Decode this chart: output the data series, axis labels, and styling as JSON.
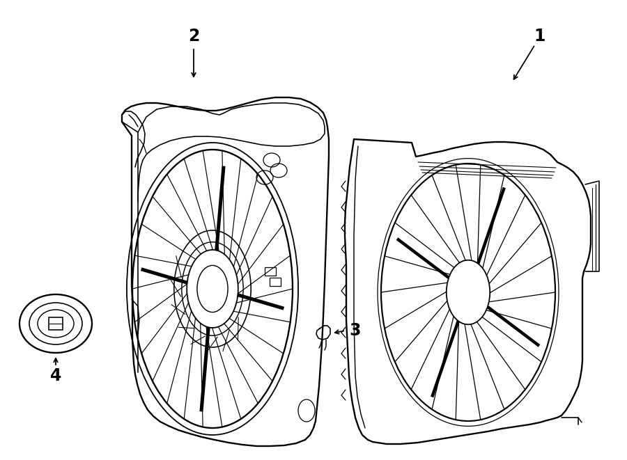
{
  "bg_color": "#ffffff",
  "line_color": "#000000",
  "lw": 1.3,
  "fig_w": 9.0,
  "fig_h": 6.61,
  "dpi": 100
}
